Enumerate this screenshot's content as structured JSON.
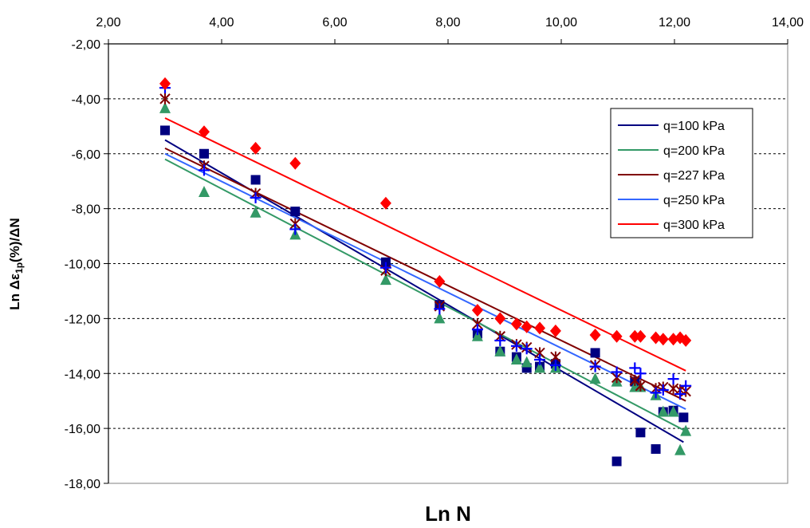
{
  "chart_data": {
    "type": "scatter",
    "title": "",
    "xlabel": "Ln N",
    "ylabel_prefix": "Ln Δε",
    "ylabel_sub": "1p",
    "ylabel_suffix": "(%)/ΔN",
    "x_axis_position": "top",
    "xlim": [
      2,
      14
    ],
    "ylim": [
      -18,
      -2
    ],
    "x_ticks": [
      "2,00",
      "4,00",
      "6,00",
      "8,00",
      "10,00",
      "12,00",
      "14,00"
    ],
    "y_ticks": [
      "-2,00",
      "-4,00",
      "-6,00",
      "-8,00",
      "-10,00",
      "-12,00",
      "-14,00",
      "-16,00",
      "-18,00"
    ],
    "grid": "horizontal dashed",
    "legend_position": "right",
    "series": [
      {
        "name": "q=100 kPa",
        "marker": "square",
        "marker_color": "#000080",
        "line_color": "#000080",
        "points": [
          [
            3.0,
            -5.15
          ],
          [
            3.69,
            -6.0
          ],
          [
            4.6,
            -6.95
          ],
          [
            5.3,
            -8.1
          ],
          [
            6.9,
            -9.95
          ],
          [
            7.85,
            -11.5
          ],
          [
            8.52,
            -12.55
          ],
          [
            8.92,
            -13.2
          ],
          [
            9.21,
            -13.4
          ],
          [
            9.39,
            -13.8
          ],
          [
            9.62,
            -13.75
          ],
          [
            9.9,
            -13.65
          ],
          [
            10.6,
            -13.25
          ],
          [
            10.98,
            -17.2
          ],
          [
            11.3,
            -14.3
          ],
          [
            11.4,
            -16.15
          ],
          [
            11.67,
            -16.75
          ],
          [
            11.8,
            -15.4
          ],
          [
            11.98,
            -15.35
          ],
          [
            12.16,
            -15.6
          ]
        ],
        "trend": [
          [
            3.0,
            -5.5
          ],
          [
            12.16,
            -16.5
          ]
        ]
      },
      {
        "name": "q=200 kPa",
        "marker": "triangle",
        "marker_color": "#339966",
        "line_color": "#339966",
        "points": [
          [
            3.0,
            -4.35
          ],
          [
            3.69,
            -7.4
          ],
          [
            4.6,
            -8.15
          ],
          [
            5.3,
            -8.95
          ],
          [
            6.9,
            -10.6
          ],
          [
            7.85,
            -12.0
          ],
          [
            8.52,
            -12.65
          ],
          [
            8.92,
            -13.2
          ],
          [
            9.21,
            -13.5
          ],
          [
            9.39,
            -13.6
          ],
          [
            9.62,
            -13.8
          ],
          [
            9.9,
            -13.8
          ],
          [
            10.6,
            -14.2
          ],
          [
            10.98,
            -14.3
          ],
          [
            11.3,
            -14.5
          ],
          [
            11.4,
            -14.5
          ],
          [
            11.67,
            -14.8
          ],
          [
            11.8,
            -15.4
          ],
          [
            11.98,
            -15.4
          ],
          [
            12.1,
            -16.8
          ],
          [
            12.2,
            -16.1
          ]
        ],
        "trend": [
          [
            3.0,
            -6.2
          ],
          [
            12.2,
            -16.1
          ]
        ]
      },
      {
        "name": "q=227 kPa",
        "marker": "asterisk",
        "marker_color": "#800000",
        "line_color": "#800000",
        "points": [
          [
            3.0,
            -4.0
          ],
          [
            3.69,
            -6.45
          ],
          [
            4.6,
            -7.45
          ],
          [
            5.3,
            -8.55
          ],
          [
            6.9,
            -10.25
          ],
          [
            7.85,
            -11.55
          ],
          [
            8.52,
            -12.2
          ],
          [
            8.92,
            -12.65
          ],
          [
            9.21,
            -12.95
          ],
          [
            9.39,
            -13.05
          ],
          [
            9.62,
            -13.25
          ],
          [
            9.9,
            -13.4
          ],
          [
            10.6,
            -13.7
          ],
          [
            10.98,
            -14.15
          ],
          [
            11.3,
            -14.25
          ],
          [
            11.4,
            -14.45
          ],
          [
            11.67,
            -14.55
          ],
          [
            11.8,
            -14.5
          ],
          [
            11.98,
            -14.55
          ],
          [
            12.1,
            -14.6
          ],
          [
            12.2,
            -14.65
          ]
        ],
        "trend": [
          [
            3.0,
            -5.8
          ],
          [
            12.2,
            -15.0
          ]
        ]
      },
      {
        "name": "q=250 kPa",
        "marker": "plus",
        "marker_color": "#0000ff",
        "line_color": "#3366ff",
        "points": [
          [
            3.0,
            -3.6
          ],
          [
            3.69,
            -6.6
          ],
          [
            4.6,
            -7.6
          ],
          [
            5.3,
            -8.75
          ],
          [
            6.9,
            -10.15
          ],
          [
            7.85,
            -11.65
          ],
          [
            8.52,
            -12.4
          ],
          [
            8.92,
            -12.8
          ],
          [
            9.21,
            -13.0
          ],
          [
            9.39,
            -13.1
          ],
          [
            9.62,
            -13.5
          ],
          [
            9.9,
            -13.7
          ],
          [
            10.6,
            -13.75
          ],
          [
            10.98,
            -13.95
          ],
          [
            11.3,
            -13.8
          ],
          [
            11.4,
            -14.0
          ],
          [
            11.67,
            -14.7
          ],
          [
            11.8,
            -14.6
          ],
          [
            11.98,
            -14.2
          ],
          [
            12.1,
            -14.75
          ],
          [
            12.2,
            -14.45
          ]
        ],
        "trend": [
          [
            3.0,
            -6.0
          ],
          [
            12.2,
            -15.3
          ]
        ]
      },
      {
        "name": "q=300 kPa",
        "marker": "diamond",
        "marker_color": "#ff0000",
        "line_color": "#ff0000",
        "points": [
          [
            3.0,
            -3.45
          ],
          [
            3.69,
            -5.2
          ],
          [
            4.6,
            -5.8
          ],
          [
            5.3,
            -6.35
          ],
          [
            6.9,
            -7.8
          ],
          [
            7.85,
            -10.65
          ],
          [
            8.52,
            -11.7
          ],
          [
            8.92,
            -12.0
          ],
          [
            9.21,
            -12.2
          ],
          [
            9.39,
            -12.3
          ],
          [
            9.62,
            -12.35
          ],
          [
            9.9,
            -12.45
          ],
          [
            10.6,
            -12.6
          ],
          [
            10.98,
            -12.65
          ],
          [
            11.3,
            -12.65
          ],
          [
            11.4,
            -12.65
          ],
          [
            11.67,
            -12.7
          ],
          [
            11.8,
            -12.75
          ],
          [
            11.98,
            -12.75
          ],
          [
            12.1,
            -12.7
          ],
          [
            12.2,
            -12.8
          ]
        ],
        "trend": [
          [
            3.0,
            -4.7
          ],
          [
            12.2,
            -13.9
          ]
        ]
      }
    ]
  }
}
